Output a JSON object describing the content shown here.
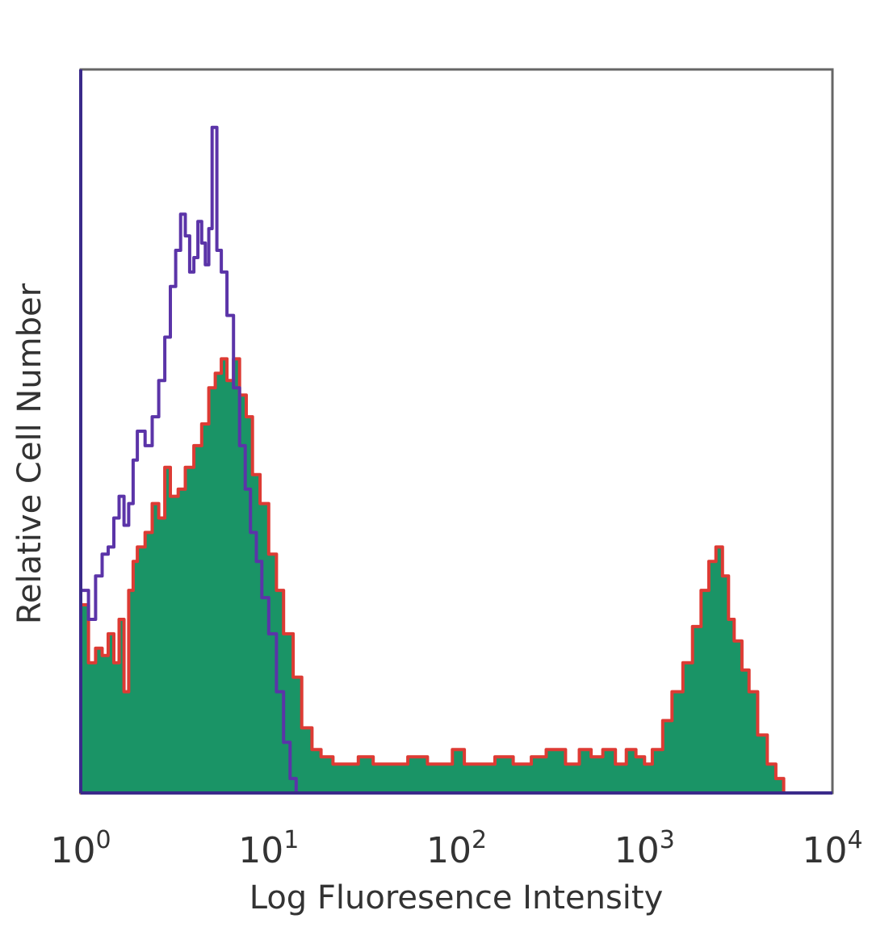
{
  "chart_data": {
    "type": "area",
    "title": "",
    "xlabel": "Log Fluoresence Intensity",
    "ylabel": "Relative Cell Number",
    "x_scale": "log",
    "xlim": [
      1,
      10000
    ],
    "ylim": [
      0,
      100
    ],
    "x_ticks": [
      {
        "value": 1,
        "base": "10",
        "exp": "0"
      },
      {
        "value": 10,
        "base": "10",
        "exp": "1"
      },
      {
        "value": 100,
        "base": "10",
        "exp": "2"
      },
      {
        "value": 1000,
        "base": "10",
        "exp": "3"
      },
      {
        "value": 10000,
        "base": "10",
        "exp": "4"
      }
    ],
    "grid": false,
    "legend": "none",
    "series": [
      {
        "style": "filled",
        "fill": "#1a9466",
        "stroke": "#dd3b34",
        "x": [
          1.0,
          1.1,
          1.2,
          1.3,
          1.4,
          1.5,
          1.6,
          1.7,
          1.8,
          1.9,
          2.0,
          2.2,
          2.4,
          2.6,
          2.8,
          3.0,
          3.3,
          3.6,
          4.0,
          4.4,
          4.8,
          5.2,
          5.6,
          6.0,
          6.5,
          7.0,
          7.6,
          8.2,
          9.0,
          10.0,
          11.0,
          12.0,
          13.5,
          15.0,
          17.0,
          19.0,
          22.0,
          26.0,
          30.0,
          36.0,
          45.0,
          55.0,
          70.0,
          85.0,
          95.0,
          110.0,
          130.0,
          160.0,
          200.0,
          250.0,
          300.0,
          380.0,
          450.0,
          520.0,
          600.0,
          700.0,
          800.0,
          900.0,
          1000.0,
          1100.0,
          1250.0,
          1400.0,
          1600.0,
          1800.0,
          2000.0,
          2200.0,
          2400.0,
          2600.0,
          2800.0,
          3000.0,
          3300.0,
          3600.0,
          4000.0,
          4500.0,
          5000.0,
          5500.0
        ],
        "values": [
          26,
          18,
          20,
          19,
          22,
          18,
          24,
          14,
          28,
          32,
          34,
          36,
          40,
          38,
          45,
          41,
          42,
          45,
          48,
          51,
          56,
          58,
          60,
          57,
          60,
          55,
          52,
          44,
          40,
          33,
          28,
          22,
          16,
          9,
          6,
          5,
          4,
          4,
          5,
          4,
          4,
          5,
          4,
          4,
          6,
          4,
          4,
          5,
          4,
          5,
          6,
          4,
          6,
          5,
          6,
          4,
          6,
          5,
          4,
          6,
          10,
          14,
          18,
          23,
          28,
          32,
          34,
          30,
          24,
          21,
          17,
          14,
          8,
          4,
          2,
          0
        ]
      },
      {
        "style": "line",
        "stroke": "#5b34a8",
        "x": [
          1.0,
          1.1,
          1.2,
          1.3,
          1.4,
          1.5,
          1.6,
          1.7,
          1.8,
          1.9,
          2.0,
          2.2,
          2.4,
          2.6,
          2.8,
          3.0,
          3.2,
          3.4,
          3.6,
          3.8,
          4.0,
          4.2,
          4.4,
          4.6,
          4.8,
          5.0,
          5.3,
          5.6,
          6.0,
          6.5,
          7.0,
          7.5,
          8.0,
          8.6,
          9.2,
          10.0,
          11.0,
          12.0,
          13.0,
          14.0
        ],
        "values": [
          28,
          24,
          30,
          33,
          34,
          38,
          41,
          37,
          40,
          46,
          50,
          48,
          52,
          57,
          63,
          70,
          75,
          80,
          77,
          72,
          74,
          79,
          76,
          73,
          78,
          92,
          75,
          72,
          66,
          56,
          48,
          42,
          36,
          32,
          27,
          22,
          14,
          7,
          2,
          0
        ]
      }
    ]
  }
}
